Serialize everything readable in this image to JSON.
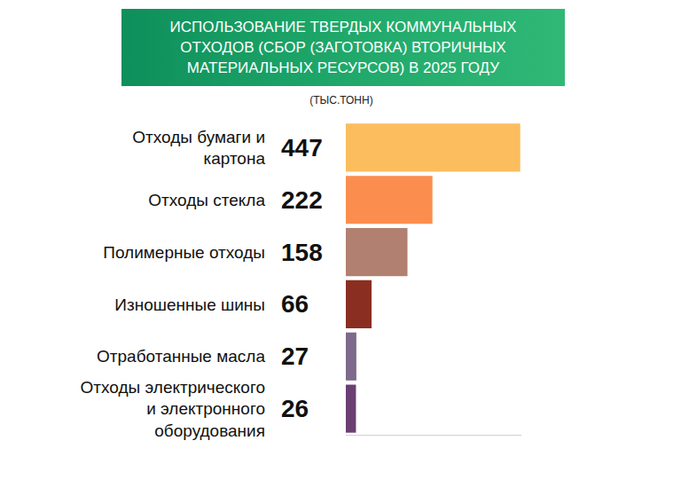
{
  "chart_data": {
    "type": "bar",
    "title": "ИСПОЛЬЗОВАНИЕ ТВЕРДЫХ КОММУНАЛЬНЫХ ОТХОДОВ (СБОР (ЗАГОТОВКА) ВТОРИЧНЫХ МАТЕРИАЛЬНЫХ РЕСУРСОВ) В 2025 ГОДУ",
    "subtitle": "(ТЫС.ТОНН)",
    "categories": [
      "Отходы бумаги и картона",
      "Отходы стекла",
      "Полимерные отходы",
      "Изношенные шины",
      "Отработанные масла",
      "Отходы электрического и электронного оборудования"
    ],
    "values": [
      447,
      222,
      158,
      66,
      27,
      26
    ],
    "colors": [
      "#fbbd5e",
      "#fb8e4e",
      "#b18070",
      "#8b2e22",
      "#7d6a8c",
      "#6b3f72"
    ],
    "orientation": "horizontal",
    "data_labels": true,
    "xlim": [
      0,
      450
    ],
    "xticks": [],
    "tick_labels": "y",
    "grid": false
  }
}
